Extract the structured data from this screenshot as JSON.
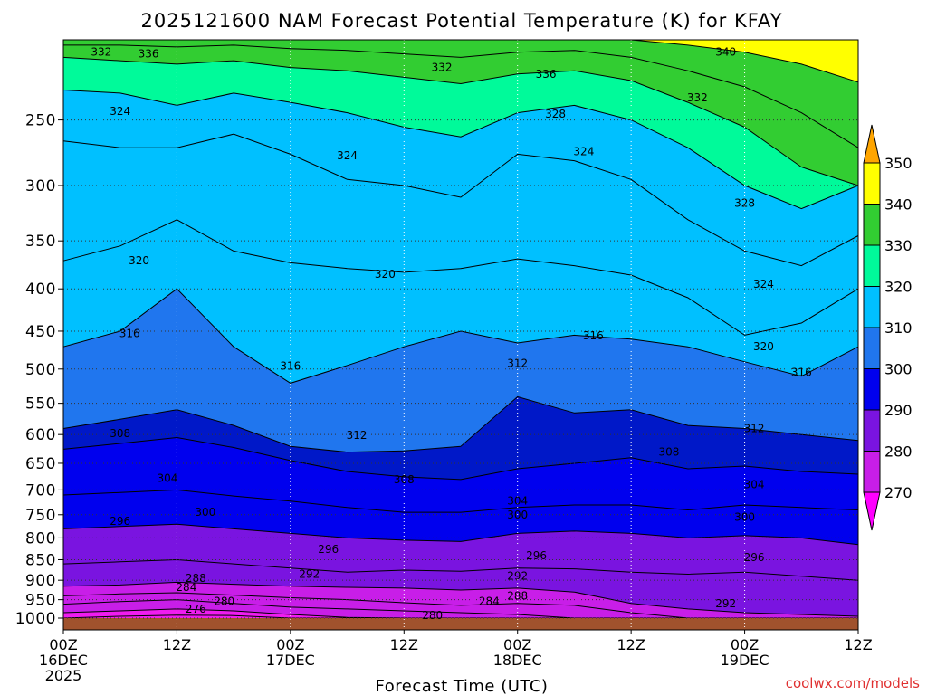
{
  "chart_data": {
    "type": "heatmap",
    "title": "2025121600 NAM Forecast Potential Temperature (K) for KFAY",
    "xlabel": "Forecast Time (UTC)",
    "ylabel": "",
    "credit": "coolwx.com/models",
    "y_axis": {
      "scale": "log-pressure",
      "range": [
        1000,
        200
      ],
      "ticks": [
        "250",
        "300",
        "350",
        "400",
        "450",
        "500",
        "550",
        "600",
        "650",
        "700",
        "750",
        "800",
        "850",
        "900",
        "950",
        "1000"
      ]
    },
    "x_axis": {
      "range_hours": [
        0,
        84
      ],
      "ticks": [
        {
          "hour": 0,
          "l1": "00Z",
          "l2": "16DEC",
          "l3": "2025"
        },
        {
          "hour": 12,
          "l1": "12Z",
          "l2": "",
          "l3": ""
        },
        {
          "hour": 24,
          "l1": "00Z",
          "l2": "17DEC",
          "l3": ""
        },
        {
          "hour": 36,
          "l1": "12Z",
          "l2": "",
          "l3": ""
        },
        {
          "hour": 48,
          "l1": "00Z",
          "l2": "18DEC",
          "l3": ""
        },
        {
          "hour": 60,
          "l1": "12Z",
          "l2": "",
          "l3": ""
        },
        {
          "hour": 72,
          "l1": "00Z",
          "l2": "19DEC",
          "l3": ""
        },
        {
          "hour": 84,
          "l1": "12Z",
          "l2": "",
          "l3": ""
        }
      ]
    },
    "colorbar": {
      "levels": [
        "270",
        "280",
        "290",
        "300",
        "310",
        "320",
        "330",
        "340",
        "350"
      ],
      "colors": [
        "#f01cf0",
        "#c81ee8",
        "#7a14e0",
        "#0000ee",
        "#0018c8",
        "#2076ee",
        "#00c0ff",
        "#00fa9a",
        "#32cd32",
        "#ffff00",
        "#ffa500"
      ]
    },
    "hours": [
      0,
      6,
      12,
      18,
      24,
      30,
      36,
      42,
      48,
      54,
      60,
      66,
      72,
      78,
      84
    ],
    "isentropes": [
      {
        "theta": 276,
        "p": [
          1000,
          995,
          992,
          993,
          1000,
          1000,
          1000,
          1000,
          1000,
          1000,
          1000,
          1000,
          1000,
          1000,
          1000
        ]
      },
      {
        "theta": 280,
        "p": [
          985,
          980,
          975,
          980,
          990,
          998,
          1000,
          1000,
          1000,
          1000,
          1000,
          1000,
          1000,
          1000,
          1000
        ]
      },
      {
        "theta": 284,
        "p": [
          962,
          955,
          950,
          960,
          970,
          975,
          980,
          985,
          990,
          1000,
          1000,
          1000,
          1000,
          1000,
          1000
        ]
      },
      {
        "theta": 288,
        "p": [
          940,
          935,
          932,
          938,
          945,
          950,
          958,
          965,
          960,
          965,
          985,
          1000,
          1000,
          1000,
          1000
        ]
      },
      {
        "theta": 292,
        "p": [
          915,
          912,
          905,
          910,
          915,
          918,
          920,
          925,
          920,
          930,
          960,
          975,
          985,
          990,
          995
        ]
      },
      {
        "theta": 296,
        "p": [
          860,
          855,
          850,
          860,
          870,
          880,
          875,
          878,
          870,
          872,
          880,
          885,
          880,
          890,
          900
        ]
      },
      {
        "theta": 300,
        "p": [
          780,
          775,
          770,
          780,
          790,
          800,
          805,
          808,
          790,
          785,
          790,
          800,
          795,
          800,
          815
        ]
      },
      {
        "theta": 304,
        "p": [
          710,
          705,
          700,
          712,
          722,
          735,
          745,
          745,
          735,
          730,
          730,
          740,
          730,
          735,
          740
        ]
      },
      {
        "theta": 308,
        "p": [
          625,
          615,
          605,
          622,
          645,
          665,
          675,
          680,
          660,
          650,
          640,
          660,
          655,
          665,
          670
        ]
      },
      {
        "theta": 312,
        "p": [
          590,
          575,
          560,
          585,
          620,
          630,
          628,
          620,
          540,
          565,
          560,
          585,
          590,
          600,
          610
        ]
      },
      {
        "theta": 316,
        "p": [
          470,
          450,
          400,
          470,
          520,
          495,
          470,
          450,
          465,
          455,
          460,
          470,
          490,
          510,
          470
        ]
      },
      {
        "theta": 320,
        "p": [
          370,
          355,
          330,
          360,
          372,
          378,
          382,
          378,
          368,
          375,
          385,
          410,
          455,
          440,
          400
        ]
      },
      {
        "theta": 324,
        "p": [
          265,
          270,
          270,
          260,
          275,
          295,
          300,
          310,
          275,
          280,
          295,
          330,
          360,
          375,
          345
        ]
      },
      {
        "theta": 328,
        "p": [
          230,
          232,
          240,
          232,
          238,
          245,
          255,
          262,
          245,
          240,
          250,
          270,
          300,
          320,
          300
        ]
      },
      {
        "theta": 332,
        "p": [
          210,
          212,
          214,
          212,
          216,
          218,
          222,
          226,
          220,
          218,
          224,
          238,
          255,
          285,
          300
        ]
      },
      {
        "theta": 336,
        "p": [
          203,
          203,
          204,
          203,
          205,
          206,
          208,
          210,
          207,
          206,
          210,
          218,
          228,
          245,
          270
        ]
      },
      {
        "theta": 340,
        "p": [
          200,
          200,
          200,
          200,
          200,
          200,
          200,
          200,
          200,
          200,
          200,
          203,
          207,
          214,
          225
        ]
      }
    ],
    "contour_labels": [
      {
        "text": "332",
        "hour": 4,
        "p": 207
      },
      {
        "text": "336",
        "hour": 9,
        "p": 208
      },
      {
        "text": "332",
        "hour": 40,
        "p": 216
      },
      {
        "text": "336",
        "hour": 51,
        "p": 220
      },
      {
        "text": "340",
        "hour": 70,
        "p": 207
      },
      {
        "text": "324",
        "hour": 6,
        "p": 244
      },
      {
        "text": "324",
        "hour": 30,
        "p": 276
      },
      {
        "text": "328",
        "hour": 52,
        "p": 246
      },
      {
        "text": "324",
        "hour": 55,
        "p": 273
      },
      {
        "text": "332",
        "hour": 67,
        "p": 235
      },
      {
        "text": "328",
        "hour": 72,
        "p": 315
      },
      {
        "text": "320",
        "hour": 8,
        "p": 370
      },
      {
        "text": "320",
        "hour": 34,
        "p": 384
      },
      {
        "text": "324",
        "hour": 74,
        "p": 395
      },
      {
        "text": "316",
        "hour": 7,
        "p": 453
      },
      {
        "text": "316",
        "hour": 24,
        "p": 496
      },
      {
        "text": "312",
        "hour": 48,
        "p": 492
      },
      {
        "text": "316",
        "hour": 56,
        "p": 456
      },
      {
        "text": "320",
        "hour": 74,
        "p": 470
      },
      {
        "text": "316",
        "hour": 78,
        "p": 505
      },
      {
        "text": "308",
        "hour": 6,
        "p": 598
      },
      {
        "text": "312",
        "hour": 31,
        "p": 601
      },
      {
        "text": "312",
        "hour": 73,
        "p": 590
      },
      {
        "text": "308",
        "hour": 64,
        "p": 630
      },
      {
        "text": "304",
        "hour": 11,
        "p": 678
      },
      {
        "text": "308",
        "hour": 36,
        "p": 680
      },
      {
        "text": "304",
        "hour": 48,
        "p": 722
      },
      {
        "text": "304",
        "hour": 73,
        "p": 690
      },
      {
        "text": "300",
        "hour": 15,
        "p": 745
      },
      {
        "text": "296",
        "hour": 6,
        "p": 764
      },
      {
        "text": "300",
        "hour": 48,
        "p": 750
      },
      {
        "text": "300",
        "hour": 72,
        "p": 755
      },
      {
        "text": "296",
        "hour": 28,
        "p": 826
      },
      {
        "text": "296",
        "hour": 50,
        "p": 840
      },
      {
        "text": "296",
        "hour": 73,
        "p": 845
      },
      {
        "text": "292",
        "hour": 26,
        "p": 885
      },
      {
        "text": "292",
        "hour": 48,
        "p": 890
      },
      {
        "text": "288",
        "hour": 14,
        "p": 895
      },
      {
        "text": "284",
        "hour": 13,
        "p": 918
      },
      {
        "text": "280",
        "hour": 17,
        "p": 955
      },
      {
        "text": "276",
        "hour": 14,
        "p": 975
      },
      {
        "text": "284",
        "hour": 45,
        "p": 955
      },
      {
        "text": "288",
        "hour": 48,
        "p": 940
      },
      {
        "text": "292",
        "hour": 70,
        "p": 960
      },
      {
        "text": "280",
        "hour": 39,
        "p": 992
      }
    ]
  }
}
